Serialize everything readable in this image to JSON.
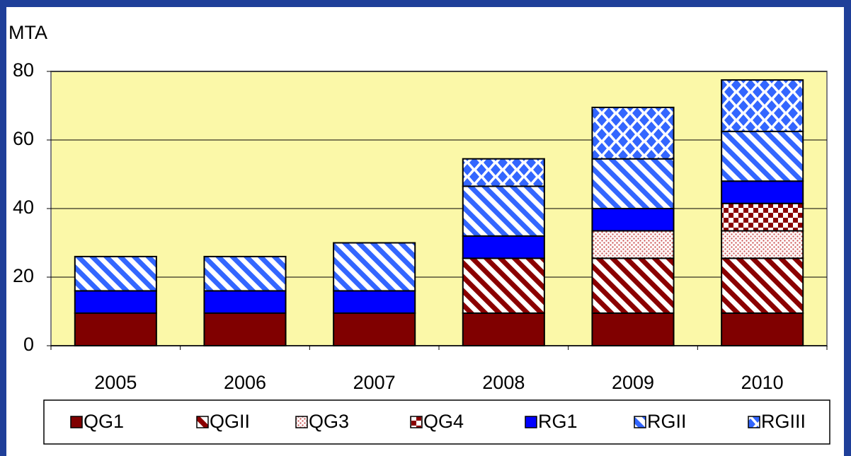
{
  "chart_data": {
    "type": "stacked_bar",
    "y_label": "MTA",
    "categories": [
      "2005",
      "2006",
      "2007",
      "2008",
      "2009",
      "2010"
    ],
    "series": [
      {
        "name": "QG1",
        "color": "#800000",
        "pattern": "solid",
        "values": [
          9.5,
          9.5,
          9.5,
          9.5,
          9.5,
          9.5
        ]
      },
      {
        "name": "QGII",
        "color": "#8b0000",
        "pattern": "stripes",
        "values": [
          null,
          null,
          null,
          16,
          16,
          16
        ]
      },
      {
        "name": "QG3",
        "color": "#d06060",
        "pattern": "dots",
        "values": [
          null,
          null,
          null,
          null,
          8,
          8
        ]
      },
      {
        "name": "QG4",
        "color": "#8b0000",
        "pattern": "checker",
        "values": [
          null,
          null,
          null,
          null,
          null,
          8
        ]
      },
      {
        "name": "RG1",
        "color": "#0000ff",
        "pattern": "solid",
        "values": [
          6.5,
          6.5,
          6.5,
          6.5,
          6.5,
          6.5
        ]
      },
      {
        "name": "RGII",
        "color": "#3366ff",
        "pattern": "stripes",
        "values": [
          10,
          10,
          14,
          14.5,
          14.5,
          14.5
        ]
      },
      {
        "name": "RGIII",
        "color": "#3366ff",
        "pattern": "diamonds",
        "values": [
          null,
          null,
          null,
          8,
          15,
          15
        ]
      }
    ],
    "ylim": [
      0,
      80
    ],
    "yticks": [
      0,
      20,
      40,
      60,
      80
    ],
    "grid": true,
    "legend": "bottom"
  }
}
